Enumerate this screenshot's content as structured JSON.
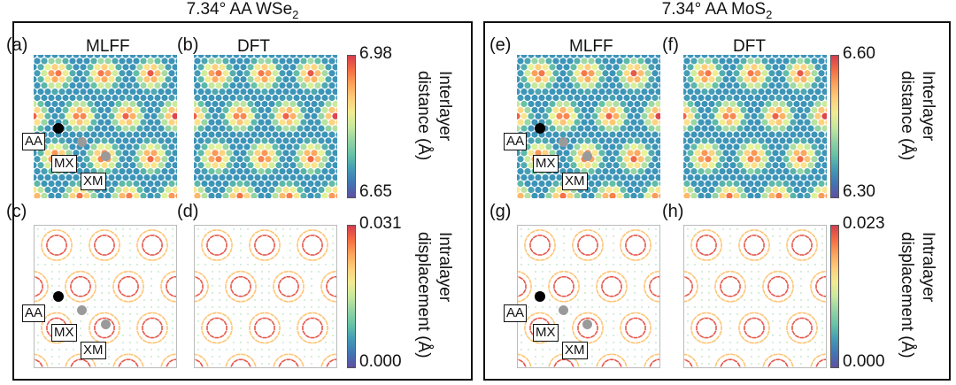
{
  "groups": [
    {
      "title_main": "7.34° AA WSe",
      "title_sub": "2",
      "col_mlff": "MLFF",
      "col_dft": "DFT",
      "labels": {
        "a": "(a)",
        "b": "(b)",
        "c": "(c)",
        "d": "(d)"
      },
      "inter_cbar": {
        "max": "6.98",
        "min": "6.65",
        "label_line1": "Interlayer",
        "label_line2": "distance (Å)"
      },
      "intra_cbar": {
        "max": "0.031",
        "min": "0.000",
        "label_line1": "Intralayer",
        "label_line2": "displacement (Å)"
      }
    },
    {
      "title_main": "7.34° AA MoS",
      "title_sub": "2",
      "col_mlff": "MLFF",
      "col_dft": "DFT",
      "labels": {
        "a": "(e)",
        "b": "(f)",
        "c": "(g)",
        "d": "(h)"
      },
      "inter_cbar": {
        "max": "6.60",
        "min": "6.30",
        "label_line1": "Interlayer",
        "label_line2": "distance (Å)"
      },
      "intra_cbar": {
        "max": "0.023",
        "min": "0.000",
        "label_line1": "Intralayer",
        "label_line2": "displacement (Å)"
      }
    }
  ],
  "sites": {
    "aa": "AA",
    "mx": "MX",
    "xm": "XM"
  },
  "colors": {
    "aa_marker": "#000000",
    "site_marker": "#9a9a9a",
    "frame": "#111111"
  }
}
